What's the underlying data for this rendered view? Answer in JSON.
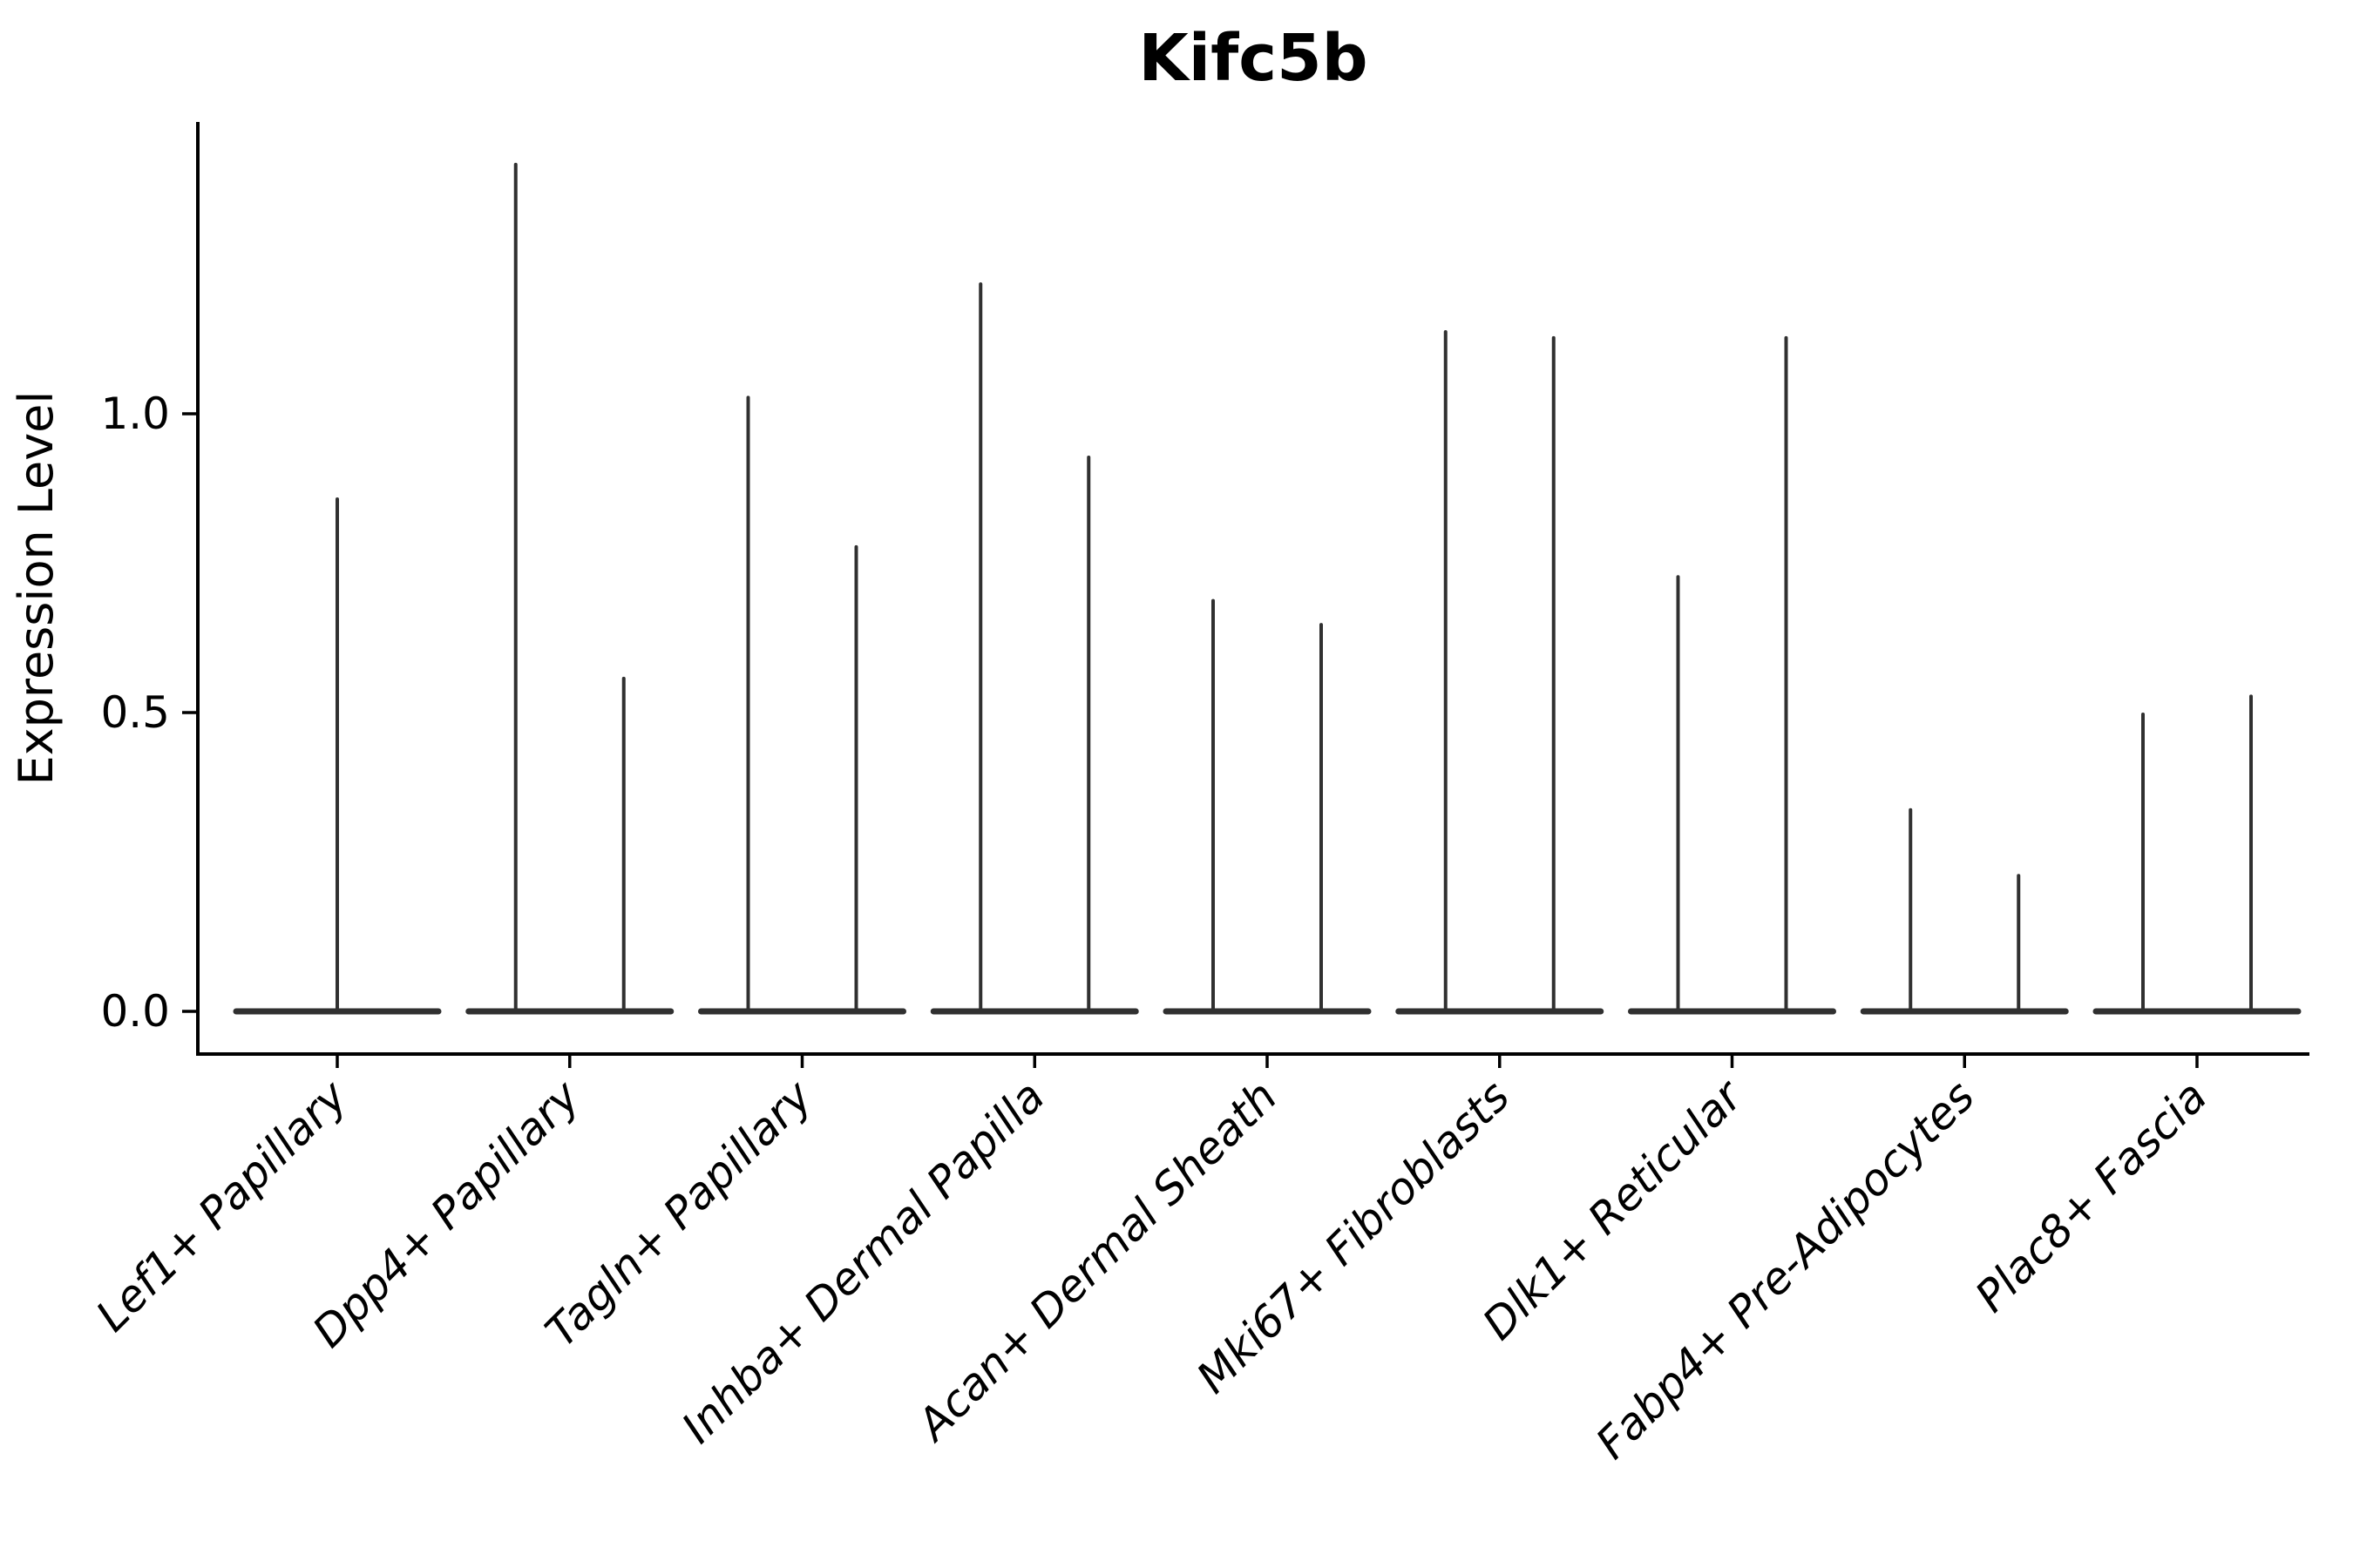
{
  "title": "Kifc5b",
  "y_axis": {
    "label": "Expression Level",
    "tick_labels": [
      "0.0",
      "0.5",
      "1.0"
    ]
  },
  "x_axis": {
    "tick_labels": [
      "Lef1+ Papillary",
      "Dpp4+ Papillary",
      "Tagln+ Papillary",
      "Inhba+ Dermal Papilla",
      "Acan+ Dermal Sheath",
      "Mki67+ Fibroblasts",
      "Dlk1+ Reticular",
      "Fabp4+ Pre-Adipocytes",
      "Plac8+ Fascia"
    ]
  },
  "colors": {
    "violin": "#303030",
    "axis": "#000000",
    "text": "#000000",
    "background": "#ffffff"
  },
  "chart_data": {
    "type": "violin",
    "title": "Kifc5b",
    "xlabel": "",
    "ylabel": "Expression Level",
    "ylim": [
      0,
      1.49
    ],
    "yticks": [
      0.0,
      0.5,
      1.0
    ],
    "ytick_labels": [
      "0.0",
      "0.5",
      "1.0"
    ],
    "grid": false,
    "legend": "none",
    "description": "Violin plot of Kifc5b expression per fibroblast cluster; each violin is flat at 0 with one or two thin vertical spikes indicating the maximum expression reached by rare positive cells.",
    "categories": [
      "Lef1+ Papillary",
      "Dpp4+ Papillary",
      "Tagln+ Papillary",
      "Inhba+ Dermal Papilla",
      "Acan+ Dermal Sheath",
      "Mki67+ Fibroblasts",
      "Dlk1+ Reticular",
      "Fabp4+ Pre-Adipocytes",
      "Plac8+ Fascia"
    ],
    "violins": [
      {
        "category": "Lef1+ Papillary",
        "spike_max_values": [
          0.86
        ],
        "spike_offsets": [
          0
        ]
      },
      {
        "category": "Dpp4+ Papillary",
        "spike_max_values": [
          1.42,
          0.56
        ],
        "spike_offsets": [
          -62,
          62
        ]
      },
      {
        "category": "Tagln+ Papillary",
        "spike_max_values": [
          1.03,
          0.78
        ],
        "spike_offsets": [
          -62,
          62
        ]
      },
      {
        "category": "Inhba+ Dermal Papilla",
        "spike_max_values": [
          1.22,
          0.93
        ],
        "spike_offsets": [
          -62,
          62
        ]
      },
      {
        "category": "Acan+ Dermal Sheath",
        "spike_max_values": [
          0.69,
          0.65
        ],
        "spike_offsets": [
          -62,
          62
        ]
      },
      {
        "category": "Mki67+ Fibroblasts",
        "spike_max_values": [
          1.14,
          1.13
        ],
        "spike_offsets": [
          -62,
          62
        ]
      },
      {
        "category": "Dlk1+ Reticular",
        "spike_max_values": [
          0.73,
          1.13
        ],
        "spike_offsets": [
          -62,
          62
        ]
      },
      {
        "category": "Fabp4+ Pre-Adipocytes",
        "spike_max_values": [
          0.34,
          0.23
        ],
        "spike_offsets": [
          -62,
          62
        ]
      },
      {
        "category": "Plac8+ Fascia",
        "spike_max_values": [
          0.5,
          0.53
        ],
        "spike_offsets": [
          -62,
          62
        ]
      }
    ],
    "baseline_value": 0.0
  }
}
